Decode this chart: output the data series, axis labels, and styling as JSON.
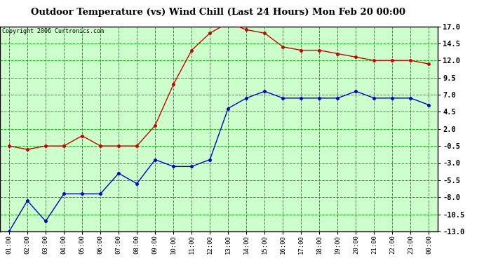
{
  "title": "Outdoor Temperature (vs) Wind Chill (Last 24 Hours) Mon Feb 20 00:00",
  "copyright": "Copyright 2006 Curtronics.com",
  "x_labels": [
    "01:00",
    "02:00",
    "03:00",
    "04:00",
    "05:00",
    "06:00",
    "07:00",
    "08:00",
    "09:00",
    "10:00",
    "11:00",
    "12:00",
    "13:00",
    "14:00",
    "15:00",
    "16:00",
    "17:00",
    "18:00",
    "19:00",
    "20:00",
    "21:00",
    "22:00",
    "23:00",
    "00:00"
  ],
  "red_data": [
    -0.5,
    -1.0,
    -0.5,
    -0.5,
    1.0,
    -0.5,
    -0.5,
    -0.5,
    2.5,
    8.5,
    13.5,
    16.0,
    17.5,
    16.5,
    16.0,
    14.0,
    13.5,
    13.5,
    13.0,
    12.5,
    12.0,
    12.0,
    12.0,
    11.5
  ],
  "blue_data": [
    -13.0,
    -8.5,
    -11.5,
    -7.5,
    -7.5,
    -7.5,
    -4.5,
    -6.0,
    -2.5,
    -3.5,
    -3.5,
    -2.5,
    5.0,
    6.5,
    7.5,
    6.5,
    6.5,
    6.5,
    6.5,
    7.5,
    6.5,
    6.5,
    6.5,
    5.5
  ],
  "red_color": "#cc0000",
  "blue_color": "#0000cc",
  "bg_color": "#ffffff",
  "plot_bg_color": "#ccffcc",
  "grid_color": "#00bb00",
  "title_color": "#000000",
  "ylim_min": -13.0,
  "ylim_max": 17.0,
  "yticks": [
    17.0,
    14.5,
    12.0,
    9.5,
    7.0,
    4.5,
    2.0,
    -0.5,
    -3.0,
    -5.5,
    -8.0,
    -10.5,
    -13.0
  ]
}
